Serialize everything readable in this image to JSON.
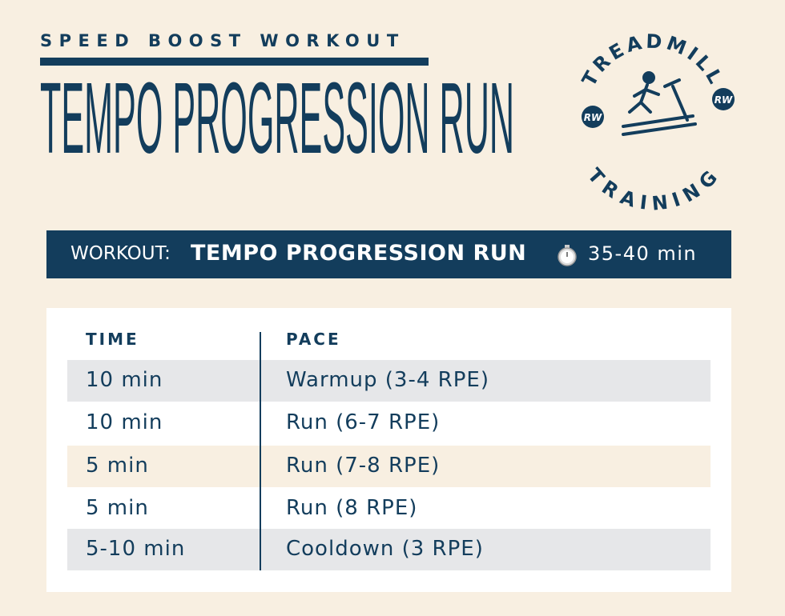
{
  "header": {
    "kicker": "SPEED BOOST WORKOUT",
    "title": "TEMPO PROGRESSION RUN"
  },
  "badge": {
    "top": "TREADMILL",
    "bottom": "TRAINING",
    "left": "RW",
    "right": "RW"
  },
  "banner": {
    "label": "WORKOUT:",
    "name": "TEMPO PROGRESSION RUN",
    "duration": "35-40 min"
  },
  "table": {
    "columns": [
      "TIME",
      "PACE"
    ],
    "rows": [
      [
        "10 min",
        "Warmup (3-4 RPE)"
      ],
      [
        "10 min",
        "Run (6-7 RPE)"
      ],
      [
        "5 min",
        "Run (7-8 RPE)"
      ],
      [
        "5 min",
        "Run (8 RPE)"
      ],
      [
        "5-10 min",
        "Cooldown (3 RPE)"
      ]
    ]
  }
}
